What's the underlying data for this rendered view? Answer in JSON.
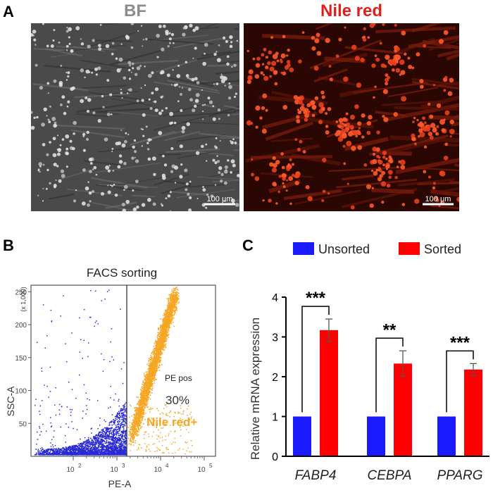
{
  "panel_a": {
    "label": "A",
    "bf_title": "BF",
    "nile_title": "Nile red",
    "bf_scale": "100 μm",
    "nile_scale": "100 μm",
    "colors": {
      "bf_title": "#8c8c8c",
      "nile_title": "#e0201b"
    }
  },
  "panel_b": {
    "label": "B",
    "title": "FACS sorting",
    "gate_label": "PE pos",
    "gate_percent": "30%",
    "population_label": "Nile red+",
    "y_axis": {
      "label": "SSC-A",
      "multiplier": "(x 1,000)",
      "ticks": [
        "50",
        "100",
        "150",
        "200",
        "250"
      ]
    },
    "x_axis": {
      "label": "PE-A",
      "ticks": [
        "10",
        "10",
        "10",
        "10"
      ],
      "exponents": [
        "2",
        "3",
        "4",
        "5"
      ]
    },
    "colors": {
      "negative": "#2a2ad6",
      "positive": "#f5a623"
    }
  },
  "panel_c": {
    "label": "C"
  },
  "chart_data": {
    "type": "bar",
    "categories": [
      "FABP4",
      "CEBPA",
      "PPARG"
    ],
    "series": [
      {
        "name": "Unsorted",
        "color": "#1a1aff",
        "values": [
          1,
          1,
          1
        ],
        "errors": [
          0,
          0,
          0
        ]
      },
      {
        "name": "Sorted",
        "color": "#ff0000",
        "values": [
          3.17,
          2.33,
          2.18
        ],
        "errors": [
          0.28,
          0.32,
          0.15
        ]
      }
    ],
    "significance": [
      "***",
      "**",
      "***"
    ],
    "ylabel": "Relative mRNA expression",
    "yticks": [
      "0",
      "1",
      "2",
      "3",
      "4"
    ],
    "ylim": [
      0,
      4
    ],
    "legend_position": "top"
  }
}
